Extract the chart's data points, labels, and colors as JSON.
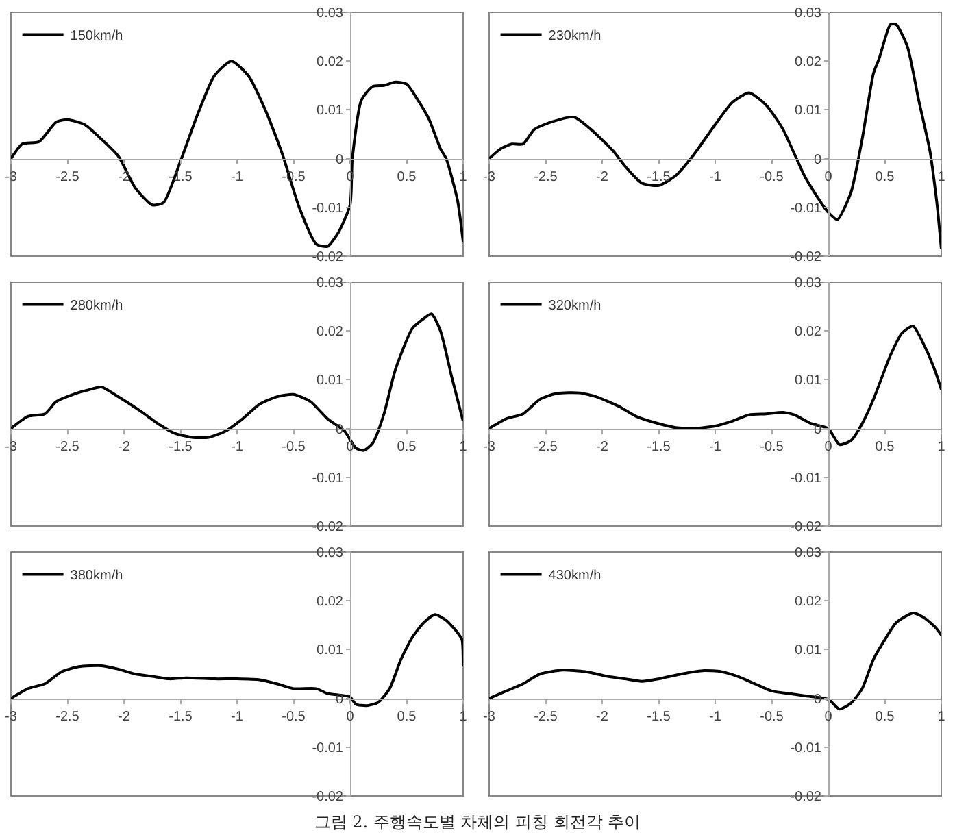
{
  "chart_data": [
    {
      "type": "line",
      "x": [
        -3,
        -2.9,
        -2.75,
        -2.6,
        -2.5,
        -2.35,
        -2.2,
        -2.05,
        -1.9,
        -1.75,
        -1.65,
        -1.5,
        -1.35,
        -1.2,
        -1.05,
        -0.9,
        -0.75,
        -0.6,
        -0.45,
        -0.3,
        -0.2,
        -0.1,
        0,
        0.02,
        0.1,
        0.2,
        0.3,
        0.4,
        0.5,
        0.6,
        0.7,
        0.8,
        0.85,
        0.95,
        1
      ],
      "series": [
        {
          "name": "150km/h",
          "color": "#000000",
          "values": [
            0,
            0.003,
            0.0035,
            0.0075,
            0.008,
            0.007,
            0.004,
            0.0005,
            -0.006,
            -0.0095,
            -0.009,
            -0.0005,
            0.009,
            0.017,
            0.02,
            0.017,
            0.01,
            0.001,
            -0.01,
            -0.0175,
            -0.018,
            -0.015,
            -0.0095,
            0,
            0.012,
            0.0148,
            0.015,
            0.0157,
            0.0153,
            0.012,
            0.008,
            0.002,
            0,
            -0.0085,
            -0.017
          ]
        }
      ],
      "xlim": [
        -3,
        1
      ],
      "ylim": [
        -0.02,
        0.03
      ],
      "xticks": [
        -3,
        -2.5,
        -2,
        -1.5,
        -1,
        -0.5,
        0,
        0.5,
        1
      ],
      "yticks": [
        -0.02,
        -0.01,
        0,
        0.01,
        0.02,
        0.03
      ],
      "grid": false,
      "legend": "top left",
      "marker": "none",
      "line_style": "solid"
    },
    {
      "type": "line",
      "x": [
        -3,
        -2.9,
        -2.8,
        -2.7,
        -2.6,
        -2.45,
        -2.25,
        -2.1,
        -1.9,
        -1.8,
        -1.65,
        -1.5,
        -1.35,
        -1.2,
        -1,
        -0.85,
        -0.7,
        -0.55,
        -0.4,
        -0.3,
        -0.2,
        -0.05,
        0,
        0.08,
        0.2,
        0.3,
        0.4,
        0.45,
        0.55,
        0.6,
        0.7,
        0.8,
        0.9,
        0.95,
        0.97,
        1
      ],
      "series": [
        {
          "name": "230km/h",
          "color": "#000000",
          "values": [
            0,
            0.002,
            0.003,
            0.003,
            0.006,
            0.0075,
            0.0085,
            0.006,
            0.0015,
            -0.0015,
            -0.005,
            -0.0055,
            -0.0035,
            0.0005,
            0.007,
            0.0115,
            0.0135,
            0.011,
            0.006,
            0.001,
            -0.004,
            -0.0095,
            -0.011,
            -0.0125,
            -0.007,
            0.004,
            0.0175,
            0.0205,
            0.0275,
            0.0275,
            0.023,
            0.012,
            0.0015,
            -0.007,
            -0.011,
            -0.0185
          ]
        }
      ],
      "xlim": [
        -3,
        1
      ],
      "ylim": [
        -0.02,
        0.03
      ],
      "xticks": [
        -3,
        -2.5,
        -2,
        -1.5,
        -1,
        -0.5,
        0,
        0.5,
        1
      ],
      "yticks": [
        -0.02,
        -0.01,
        0,
        0.01,
        0.02,
        0.03
      ],
      "grid": false,
      "legend": "top left",
      "marker": "none",
      "line_style": "solid"
    },
    {
      "type": "line",
      "x": [
        -3,
        -2.85,
        -2.7,
        -2.6,
        -2.45,
        -2.3,
        -2.2,
        -2.05,
        -1.85,
        -1.7,
        -1.55,
        -1.4,
        -1.25,
        -1.1,
        -0.95,
        -0.8,
        -0.65,
        -0.5,
        -0.35,
        -0.2,
        -0.05,
        0.05,
        0.12,
        0.2,
        0.3,
        0.4,
        0.55,
        0.65,
        0.72,
        0.8,
        0.9,
        1
      ],
      "series": [
        {
          "name": "280km/h",
          "color": "#000000",
          "values": [
            0,
            0.0025,
            0.003,
            0.0055,
            0.007,
            0.008,
            0.0085,
            0.0065,
            0.0035,
            0.001,
            -0.001,
            -0.0018,
            -0.0018,
            -0.0005,
            0.002,
            0.005,
            0.0065,
            0.007,
            0.0055,
            0.002,
            -0.0005,
            -0.004,
            -0.0045,
            -0.003,
            0.003,
            0.012,
            0.0205,
            0.0225,
            0.0235,
            0.02,
            0.0105,
            0.0015
          ]
        }
      ],
      "xlim": [
        -3,
        1
      ],
      "ylim": [
        -0.02,
        0.03
      ],
      "xticks": [
        -3,
        -2.5,
        -2,
        -1.5,
        -1,
        -0.5,
        0,
        0.5,
        1
      ],
      "yticks": [
        -0.02,
        -0.01,
        0,
        0.01,
        0.02,
        0.03
      ],
      "grid": false,
      "legend": "top left",
      "marker": "none",
      "line_style": "solid"
    },
    {
      "type": "line",
      "x": [
        -3,
        -2.85,
        -2.7,
        -2.55,
        -2.4,
        -2.2,
        -2.05,
        -1.85,
        -1.7,
        -1.5,
        -1.35,
        -1.2,
        -1,
        -0.85,
        -0.7,
        -0.55,
        -0.4,
        -0.3,
        -0.15,
        0,
        0.1,
        0.2,
        0.3,
        0.4,
        0.55,
        0.65,
        0.75,
        0.85,
        0.95,
        1
      ],
      "series": [
        {
          "name": "320km/h",
          "color": "#000000",
          "values": [
            0,
            0.002,
            0.003,
            0.006,
            0.0072,
            0.0073,
            0.0065,
            0.0045,
            0.0025,
            0.001,
            0.0002,
            0,
            0.0005,
            0.0015,
            0.0028,
            0.003,
            0.0033,
            0.0028,
            0.001,
            0,
            -0.0033,
            -0.0025,
            0.001,
            0.006,
            0.015,
            0.0195,
            0.021,
            0.017,
            0.0115,
            0.008
          ]
        }
      ],
      "xlim": [
        -3,
        1
      ],
      "ylim": [
        -0.02,
        0.03
      ],
      "xticks": [
        -3,
        -2.5,
        -2,
        -1.5,
        -1,
        -0.5,
        0,
        0.5,
        1
      ],
      "yticks": [
        -0.02,
        -0.01,
        0,
        0.01,
        0.02,
        0.03
      ],
      "grid": false,
      "legend": "top left",
      "marker": "none",
      "line_style": "solid"
    },
    {
      "type": "line",
      "x": [
        -3,
        -2.85,
        -2.7,
        -2.55,
        -2.4,
        -2.2,
        -2.05,
        -1.9,
        -1.75,
        -1.6,
        -1.45,
        -1.2,
        -1,
        -0.8,
        -0.65,
        -0.5,
        -0.3,
        -0.2,
        0,
        0.05,
        0.15,
        0.25,
        0.35,
        0.45,
        0.55,
        0.65,
        0.75,
        0.85,
        0.95,
        0.99,
        1
      ],
      "series": [
        {
          "name": "380km/h",
          "color": "#000000",
          "values": [
            0,
            0.002,
            0.003,
            0.0055,
            0.0065,
            0.0067,
            0.006,
            0.005,
            0.0045,
            0.004,
            0.0042,
            0.004,
            0.004,
            0.0038,
            0.003,
            0.002,
            0.002,
            0.001,
            0.0003,
            -0.0012,
            -0.0015,
            -0.0008,
            0.002,
            0.008,
            0.0125,
            0.0155,
            0.0172,
            0.016,
            0.0135,
            0.012,
            0.0065
          ]
        }
      ],
      "xlim": [
        -3,
        1
      ],
      "ylim": [
        -0.02,
        0.03
      ],
      "xticks": [
        -3,
        -2.5,
        -2,
        -1.5,
        -1,
        -0.5,
        0,
        0.5,
        1
      ],
      "yticks": [
        -0.02,
        -0.01,
        0,
        0.01,
        0.02,
        0.03
      ],
      "grid": false,
      "legend": "top left",
      "marker": "none",
      "line_style": "solid"
    },
    {
      "type": "line",
      "x": [
        -3,
        -2.85,
        -2.7,
        -2.55,
        -2.35,
        -2.15,
        -1.95,
        -1.8,
        -1.65,
        -1.5,
        -1.3,
        -1.1,
        -0.95,
        -0.8,
        -0.65,
        -0.5,
        -0.35,
        -0.2,
        0,
        0.1,
        0.2,
        0.3,
        0.4,
        0.5,
        0.6,
        0.75,
        0.85,
        0.95,
        1
      ],
      "series": [
        {
          "name": "430km/h",
          "color": "#000000",
          "values": [
            0,
            0.0015,
            0.003,
            0.005,
            0.0058,
            0.0055,
            0.0045,
            0.004,
            0.0035,
            0.004,
            0.005,
            0.0057,
            0.0055,
            0.0045,
            0.003,
            0.0015,
            0.001,
            0.0005,
            -0.0002,
            -0.0022,
            -0.001,
            0.002,
            0.008,
            0.012,
            0.0155,
            0.0175,
            0.0165,
            0.0145,
            0.013
          ]
        }
      ],
      "xlim": [
        -3,
        1
      ],
      "ylim": [
        -0.02,
        0.03
      ],
      "xticks": [
        -3,
        -2.5,
        -2,
        -1.5,
        -1,
        -0.5,
        0,
        0.5,
        1
      ],
      "yticks": [
        -0.02,
        -0.01,
        0,
        0.01,
        0.02,
        0.03
      ],
      "grid": false,
      "legend": "top left",
      "marker": "none",
      "line_style": "solid",
      "annotations": [
        "그림 2. 주행속도별 차체의 피칭 회전각 추이"
      ]
    }
  ]
}
